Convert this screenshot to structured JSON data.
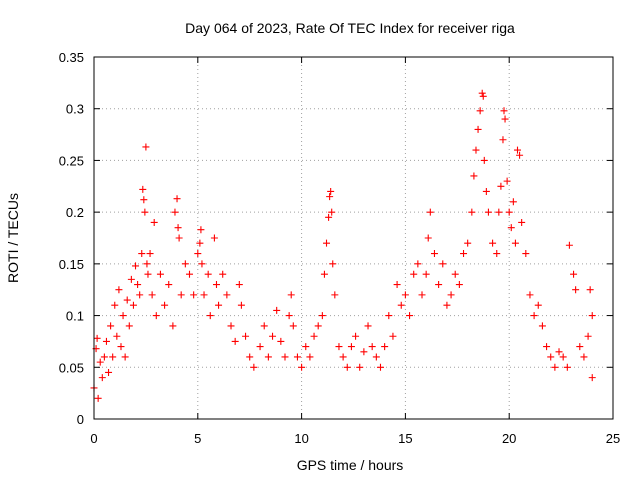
{
  "chart_data": {
    "type": "scatter",
    "title": "Day 064 of 2023, Rate Of TEC Index for receiver riga",
    "xlabel": "GPS time / hours",
    "ylabel": "ROTI / TECUs",
    "xlim": [
      0,
      25
    ],
    "ylim": [
      0,
      0.35
    ],
    "xticks": [
      0,
      5,
      10,
      15,
      20,
      25
    ],
    "xtick_labels": [
      "0",
      "5",
      "10",
      "15",
      "20",
      "25"
    ],
    "yticks": [
      0,
      0.05,
      0.1,
      0.15,
      0.2,
      0.25,
      0.3,
      0.35
    ],
    "ytick_labels": [
      "0",
      "0.05",
      "0.1",
      "0.15",
      "0.2",
      "0.25",
      "0.3",
      "0.35"
    ],
    "grid": true,
    "marker": "+",
    "color": "#ff0000",
    "series": [
      {
        "name": "ROTI",
        "points": [
          [
            0.0,
            0.03
          ],
          [
            0.1,
            0.068
          ],
          [
            0.15,
            0.078
          ],
          [
            0.2,
            0.02
          ],
          [
            0.3,
            0.055
          ],
          [
            0.4,
            0.04
          ],
          [
            0.5,
            0.06
          ],
          [
            0.6,
            0.075
          ],
          [
            0.7,
            0.045
          ],
          [
            0.8,
            0.09
          ],
          [
            0.9,
            0.06
          ],
          [
            1.0,
            0.11
          ],
          [
            1.1,
            0.08
          ],
          [
            1.2,
            0.125
          ],
          [
            1.3,
            0.07
          ],
          [
            1.4,
            0.1
          ],
          [
            1.5,
            0.06
          ],
          [
            1.6,
            0.115
          ],
          [
            1.7,
            0.09
          ],
          [
            1.8,
            0.135
          ],
          [
            1.9,
            0.11
          ],
          [
            2.0,
            0.148
          ],
          [
            2.1,
            0.13
          ],
          [
            2.2,
            0.12
          ],
          [
            2.3,
            0.16
          ],
          [
            2.35,
            0.222
          ],
          [
            2.4,
            0.212
          ],
          [
            2.45,
            0.2
          ],
          [
            2.5,
            0.263
          ],
          [
            2.55,
            0.15
          ],
          [
            2.6,
            0.14
          ],
          [
            2.7,
            0.16
          ],
          [
            2.8,
            0.12
          ],
          [
            2.9,
            0.19
          ],
          [
            3.0,
            0.1
          ],
          [
            3.2,
            0.14
          ],
          [
            3.4,
            0.11
          ],
          [
            3.6,
            0.13
          ],
          [
            3.8,
            0.09
          ],
          [
            3.9,
            0.2
          ],
          [
            4.0,
            0.213
          ],
          [
            4.05,
            0.185
          ],
          [
            4.1,
            0.175
          ],
          [
            4.2,
            0.12
          ],
          [
            4.4,
            0.15
          ],
          [
            4.6,
            0.14
          ],
          [
            4.8,
            0.12
          ],
          [
            5.0,
            0.16
          ],
          [
            5.1,
            0.17
          ],
          [
            5.15,
            0.183
          ],
          [
            5.2,
            0.15
          ],
          [
            5.3,
            0.12
          ],
          [
            5.5,
            0.14
          ],
          [
            5.6,
            0.1
          ],
          [
            5.8,
            0.175
          ],
          [
            5.9,
            0.13
          ],
          [
            6.0,
            0.11
          ],
          [
            6.2,
            0.14
          ],
          [
            6.4,
            0.12
          ],
          [
            6.6,
            0.09
          ],
          [
            6.8,
            0.075
          ],
          [
            7.0,
            0.13
          ],
          [
            7.1,
            0.11
          ],
          [
            7.3,
            0.08
          ],
          [
            7.5,
            0.06
          ],
          [
            7.7,
            0.05
          ],
          [
            8.0,
            0.07
          ],
          [
            8.2,
            0.09
          ],
          [
            8.4,
            0.06
          ],
          [
            8.6,
            0.08
          ],
          [
            8.8,
            0.105
          ],
          [
            9.0,
            0.075
          ],
          [
            9.2,
            0.06
          ],
          [
            9.4,
            0.1
          ],
          [
            9.5,
            0.12
          ],
          [
            9.6,
            0.09
          ],
          [
            9.8,
            0.06
          ],
          [
            10.0,
            0.05
          ],
          [
            10.2,
            0.07
          ],
          [
            10.4,
            0.06
          ],
          [
            10.6,
            0.08
          ],
          [
            10.8,
            0.09
          ],
          [
            11.0,
            0.1
          ],
          [
            11.1,
            0.14
          ],
          [
            11.2,
            0.17
          ],
          [
            11.3,
            0.195
          ],
          [
            11.35,
            0.215
          ],
          [
            11.4,
            0.22
          ],
          [
            11.45,
            0.2
          ],
          [
            11.5,
            0.15
          ],
          [
            11.6,
            0.12
          ],
          [
            11.8,
            0.07
          ],
          [
            12.0,
            0.06
          ],
          [
            12.2,
            0.05
          ],
          [
            12.4,
            0.07
          ],
          [
            12.6,
            0.08
          ],
          [
            12.8,
            0.05
          ],
          [
            13.0,
            0.065
          ],
          [
            13.2,
            0.09
          ],
          [
            13.4,
            0.07
          ],
          [
            13.6,
            0.06
          ],
          [
            13.8,
            0.05
          ],
          [
            14.0,
            0.07
          ],
          [
            14.2,
            0.1
          ],
          [
            14.4,
            0.08
          ],
          [
            14.6,
            0.13
          ],
          [
            14.8,
            0.11
          ],
          [
            15.0,
            0.12
          ],
          [
            15.2,
            0.1
          ],
          [
            15.4,
            0.14
          ],
          [
            15.6,
            0.15
          ],
          [
            15.8,
            0.12
          ],
          [
            16.0,
            0.14
          ],
          [
            16.1,
            0.175
          ],
          [
            16.2,
            0.2
          ],
          [
            16.4,
            0.16
          ],
          [
            16.6,
            0.13
          ],
          [
            16.8,
            0.15
          ],
          [
            17.0,
            0.11
          ],
          [
            17.2,
            0.12
          ],
          [
            17.4,
            0.14
          ],
          [
            17.6,
            0.13
          ],
          [
            17.8,
            0.16
          ],
          [
            18.0,
            0.17
          ],
          [
            18.2,
            0.2
          ],
          [
            18.3,
            0.235
          ],
          [
            18.4,
            0.26
          ],
          [
            18.5,
            0.28
          ],
          [
            18.6,
            0.298
          ],
          [
            18.7,
            0.315
          ],
          [
            18.75,
            0.312
          ],
          [
            18.8,
            0.25
          ],
          [
            18.9,
            0.22
          ],
          [
            19.0,
            0.2
          ],
          [
            19.2,
            0.17
          ],
          [
            19.4,
            0.16
          ],
          [
            19.5,
            0.2
          ],
          [
            19.6,
            0.225
          ],
          [
            19.7,
            0.27
          ],
          [
            19.75,
            0.298
          ],
          [
            19.8,
            0.29
          ],
          [
            19.9,
            0.23
          ],
          [
            20.0,
            0.2
          ],
          [
            20.1,
            0.185
          ],
          [
            20.2,
            0.21
          ],
          [
            20.3,
            0.17
          ],
          [
            20.4,
            0.26
          ],
          [
            20.5,
            0.255
          ],
          [
            20.6,
            0.19
          ],
          [
            20.8,
            0.16
          ],
          [
            21.0,
            0.12
          ],
          [
            21.2,
            0.1
          ],
          [
            21.4,
            0.11
          ],
          [
            21.6,
            0.09
          ],
          [
            21.8,
            0.07
          ],
          [
            22.0,
            0.06
          ],
          [
            22.2,
            0.05
          ],
          [
            22.4,
            0.065
          ],
          [
            22.6,
            0.06
          ],
          [
            22.8,
            0.05
          ],
          [
            22.9,
            0.168
          ],
          [
            23.1,
            0.14
          ],
          [
            23.2,
            0.125
          ],
          [
            23.4,
            0.07
          ],
          [
            23.6,
            0.06
          ],
          [
            23.8,
            0.08
          ],
          [
            23.9,
            0.125
          ],
          [
            24.0,
            0.1
          ],
          [
            24.0,
            0.04
          ]
        ]
      }
    ]
  }
}
